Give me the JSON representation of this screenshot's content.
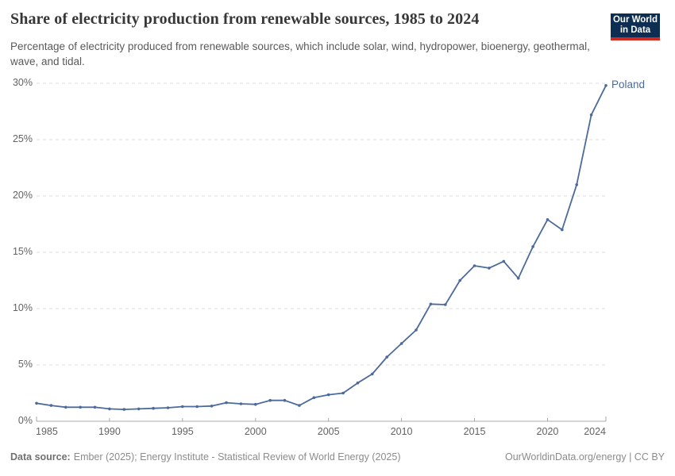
{
  "chart_data": {
    "type": "line",
    "title": "Share of electricity production from renewable sources, 1985 to 2024",
    "subtitle": "Percentage of electricity produced from renewable sources, which include solar, wind, hydropower, bioenergy, geothermal, wave, and tidal.",
    "years": [
      1985,
      1986,
      1987,
      1988,
      1989,
      1990,
      1991,
      1992,
      1993,
      1994,
      1995,
      1996,
      1997,
      1998,
      1999,
      2000,
      2001,
      2002,
      2003,
      2004,
      2005,
      2006,
      2007,
      2008,
      2009,
      2010,
      2011,
      2012,
      2013,
      2014,
      2015,
      2016,
      2017,
      2018,
      2019,
      2020,
      2021,
      2022,
      2023,
      2024
    ],
    "series": [
      {
        "name": "Poland",
        "color": "#4C6A9C",
        "values": [
          1.6,
          1.4,
          1.25,
          1.25,
          1.25,
          1.1,
          1.05,
          1.1,
          1.15,
          1.2,
          1.3,
          1.3,
          1.35,
          1.65,
          1.55,
          1.5,
          1.85,
          1.85,
          1.4,
          2.1,
          2.35,
          2.5,
          3.4,
          4.2,
          5.7,
          6.9,
          8.1,
          10.4,
          10.35,
          12.5,
          13.8,
          13.6,
          14.2,
          12.7,
          15.5,
          17.9,
          17.0,
          21.0,
          27.2,
          29.8
        ]
      }
    ],
    "end_label": "Poland",
    "xlim": [
      1985,
      2024
    ],
    "ylim": [
      0,
      30
    ],
    "x_ticks": [
      1985,
      1990,
      1995,
      2000,
      2005,
      2010,
      2015,
      2020,
      2024
    ],
    "y_ticks": [
      0,
      5,
      10,
      15,
      20,
      25,
      30
    ],
    "y_tick_suffix": "%",
    "grid": "horizontal-dashed",
    "legend": "end-of-line-label"
  },
  "branding": {
    "logo_line1": "Our World",
    "logo_line2": "in Data",
    "logo_bg": "#0D2E52",
    "logo_accent": "#CE2A20"
  },
  "footer": {
    "source_label": "Data source:",
    "source_text": "Ember (2025); Energy Institute - Statistical Review of World Energy (2025)",
    "rights": "OurWorldinData.org/energy | CC BY"
  }
}
